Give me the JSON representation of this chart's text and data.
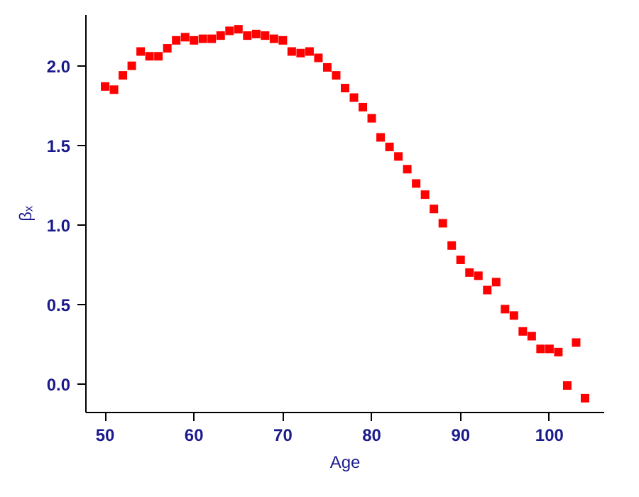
{
  "chart_data": {
    "type": "scatter",
    "xlabel": "Age",
    "ylabel": "βₓ",
    "x": [
      50,
      51,
      52,
      53,
      54,
      55,
      56,
      57,
      58,
      59,
      60,
      61,
      62,
      63,
      64,
      65,
      66,
      67,
      68,
      69,
      70,
      71,
      72,
      73,
      74,
      75,
      76,
      77,
      78,
      79,
      80,
      81,
      82,
      83,
      84,
      85,
      86,
      87,
      88,
      89,
      90,
      91,
      92,
      93,
      94,
      95,
      96,
      97,
      98,
      99,
      100,
      101,
      102,
      103,
      104
    ],
    "series": [
      {
        "color": "#ff0000",
        "values": [
          1.87,
          1.85,
          1.94,
          2.0,
          2.09,
          2.06,
          2.06,
          2.11,
          2.16,
          2.18,
          2.16,
          2.17,
          2.17,
          2.19,
          2.22,
          2.23,
          2.19,
          2.2,
          2.19,
          2.17,
          2.16,
          2.09,
          2.08,
          2.09,
          2.05,
          1.99,
          1.94,
          1.86,
          1.8,
          1.74,
          1.67,
          1.55,
          1.49,
          1.43,
          1.35,
          1.26,
          1.19,
          1.1,
          1.01,
          0.87,
          0.78,
          0.7,
          0.68,
          0.59,
          0.64,
          0.47,
          0.43,
          0.33,
          0.3,
          0.22,
          0.22,
          0.2,
          -0.01,
          0.26,
          -0.09
        ]
      }
    ],
    "marker": "square",
    "grid": false,
    "xlim": [
      47.84,
      106.16
    ],
    "ylim": [
      -0.18,
      2.32
    ],
    "xticks": [
      50,
      60,
      70,
      80,
      90,
      100
    ],
    "yticks": [
      {
        "value": 0,
        "label": "0.0"
      },
      {
        "value": 0.5,
        "label": "0.5"
      },
      {
        "value": 1,
        "label": "1.0"
      },
      {
        "value": 1.5,
        "label": "1.5"
      },
      {
        "value": 2,
        "label": "2.0"
      }
    ]
  }
}
